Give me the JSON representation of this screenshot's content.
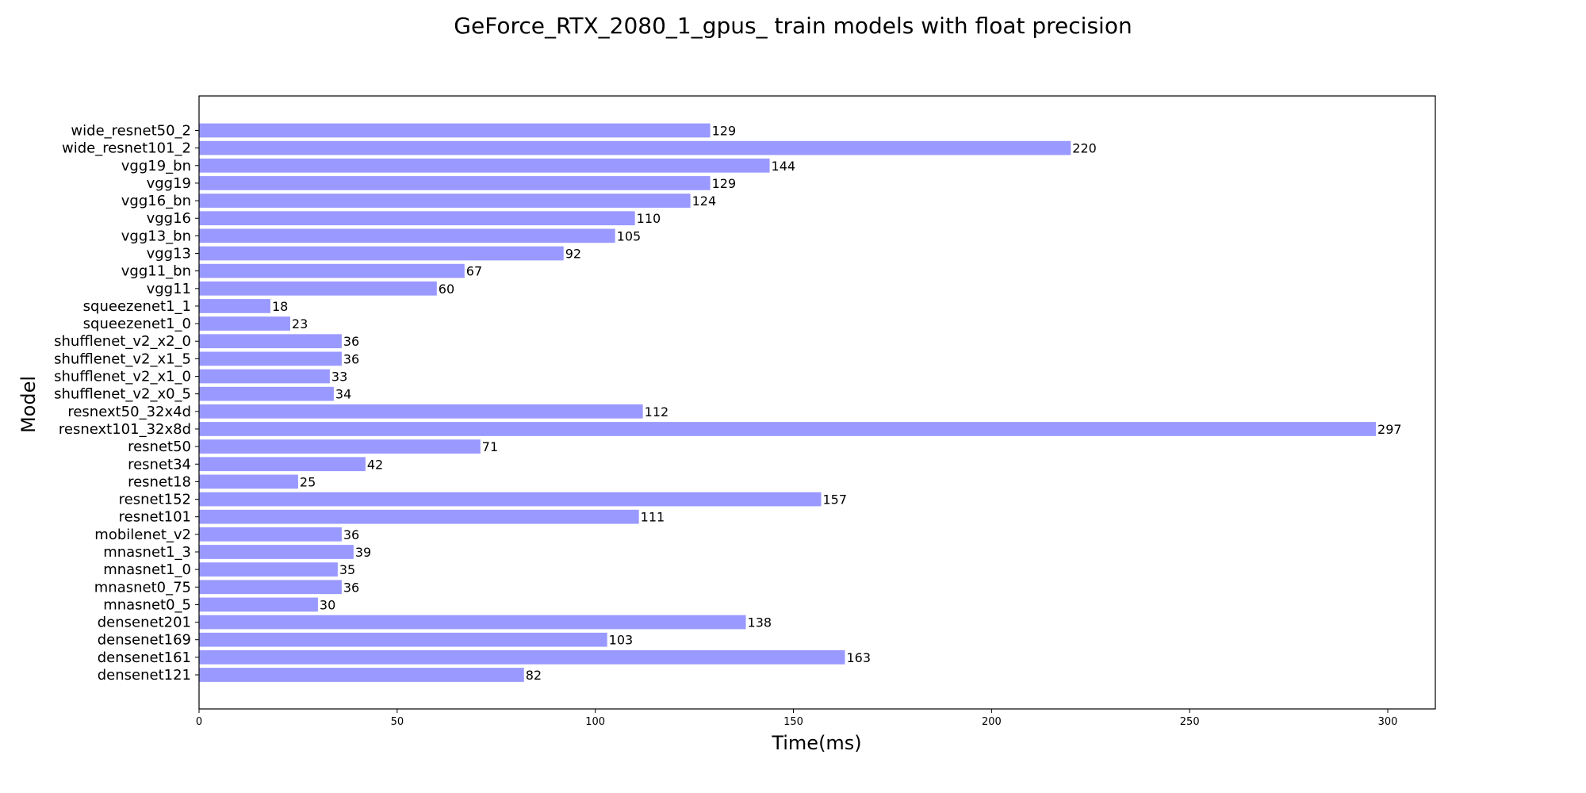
{
  "chart_data": {
    "type": "bar",
    "orientation": "horizontal",
    "title": "GeForce_RTX_2080_1_gpus_ train models with float precision",
    "xlabel": "Time(ms)",
    "ylabel": "Model",
    "xlim": [
      0,
      312
    ],
    "x_ticks": [
      "0",
      "50",
      "100",
      "150",
      "200",
      "250",
      "300"
    ],
    "grid": false,
    "bar_color": "#9999ff",
    "categories": [
      "wide_resnet50_2",
      "wide_resnet101_2",
      "vgg19_bn",
      "vgg19",
      "vgg16_bn",
      "vgg16",
      "vgg13_bn",
      "vgg13",
      "vgg11_bn",
      "vgg11",
      "squeezenet1_1",
      "squeezenet1_0",
      "shufflenet_v2_x2_0",
      "shufflenet_v2_x1_5",
      "shufflenet_v2_x1_0",
      "shufflenet_v2_x0_5",
      "resnext50_32x4d",
      "resnext101_32x8d",
      "resnet50",
      "resnet34",
      "resnet18",
      "resnet152",
      "resnet101",
      "mobilenet_v2",
      "mnasnet1_3",
      "mnasnet1_0",
      "mnasnet0_75",
      "mnasnet0_5",
      "densenet201",
      "densenet169",
      "densenet161",
      "densenet121"
    ],
    "values": [
      129,
      220,
      144,
      129,
      124,
      110,
      105,
      92,
      67,
      60,
      18,
      23,
      36,
      36,
      33,
      34,
      112,
      297,
      71,
      42,
      25,
      157,
      111,
      36,
      39,
      35,
      36,
      30,
      138,
      103,
      163,
      82
    ],
    "data_labels": [
      "129",
      "220",
      "144",
      "129",
      "124",
      "110",
      "105",
      "92",
      "67",
      "60",
      "18",
      "23",
      "36",
      "36",
      "33",
      "34",
      "112",
      "297",
      "71",
      "42",
      "25",
      "157",
      "111",
      "36",
      "39",
      "35",
      "36",
      "30",
      "138",
      "103",
      "163",
      "82"
    ]
  }
}
